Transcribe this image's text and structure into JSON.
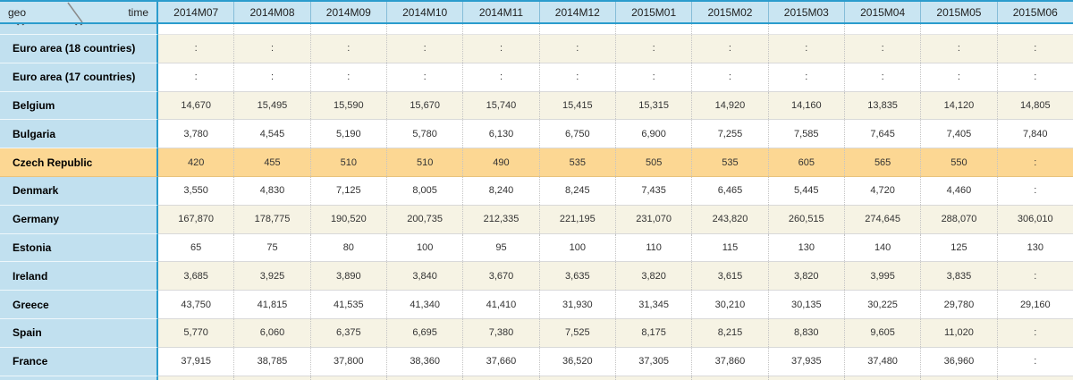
{
  "header": {
    "geo_label": "geo",
    "time_label": "time",
    "columns": [
      "2014M07",
      "2014M08",
      "2014M09",
      "2014M10",
      "2014M11",
      "2014M12",
      "2015M01",
      "2015M02",
      "2015M03",
      "2015M04",
      "2015M05",
      "2015M06"
    ]
  },
  "missing_value_symbol": ":",
  "colors": {
    "accent_border_blue": "#2b9ccd",
    "header_bg_blue": "#c9e5f2",
    "row_label_bg_blue": "#c1e0ef",
    "stripe_cream": "#f6f3e4",
    "stripe_white": "#ffffff",
    "highlight_orange": "#fcd793"
  },
  "rows": [
    {
      "label": "Euro area (18 countries)",
      "shade": "cream",
      "highlight": false,
      "values": [
        ":",
        ":",
        ":",
        ":",
        ":",
        ":",
        ":",
        ":",
        ":",
        ":",
        ":",
        ":"
      ]
    },
    {
      "label": "Euro area (17 countries)",
      "shade": "white",
      "highlight": false,
      "values": [
        ":",
        ":",
        ":",
        ":",
        ":",
        ":",
        ":",
        ":",
        ":",
        ":",
        ":",
        ":"
      ]
    },
    {
      "label": "Belgium",
      "shade": "cream",
      "highlight": false,
      "values": [
        "14,670",
        "15,495",
        "15,590",
        "15,670",
        "15,740",
        "15,415",
        "15,315",
        "14,920",
        "14,160",
        "13,835",
        "14,120",
        "14,805"
      ]
    },
    {
      "label": "Bulgaria",
      "shade": "white",
      "highlight": false,
      "values": [
        "3,780",
        "4,545",
        "5,190",
        "5,780",
        "6,130",
        "6,750",
        "6,900",
        "7,255",
        "7,585",
        "7,645",
        "7,405",
        "7,840"
      ]
    },
    {
      "label": "Czech Republic",
      "shade": "cream",
      "highlight": true,
      "values": [
        "420",
        "455",
        "510",
        "510",
        "490",
        "535",
        "505",
        "535",
        "605",
        "565",
        "550",
        ":"
      ]
    },
    {
      "label": "Denmark",
      "shade": "white",
      "highlight": false,
      "values": [
        "3,550",
        "4,830",
        "7,125",
        "8,005",
        "8,240",
        "8,245",
        "7,435",
        "6,465",
        "5,445",
        "4,720",
        "4,460",
        ":"
      ]
    },
    {
      "label": "Germany",
      "shade": "cream",
      "highlight": false,
      "values": [
        "167,870",
        "178,775",
        "190,520",
        "200,735",
        "212,335",
        "221,195",
        "231,070",
        "243,820",
        "260,515",
        "274,645",
        "288,070",
        "306,010"
      ]
    },
    {
      "label": "Estonia",
      "shade": "white",
      "highlight": false,
      "values": [
        "65",
        "75",
        "80",
        "100",
        "95",
        "100",
        "110",
        "115",
        "130",
        "140",
        "125",
        "130"
      ]
    },
    {
      "label": "Ireland",
      "shade": "cream",
      "highlight": false,
      "values": [
        "3,685",
        "3,925",
        "3,890",
        "3,840",
        "3,670",
        "3,635",
        "3,820",
        "3,615",
        "3,820",
        "3,995",
        "3,835",
        ":"
      ]
    },
    {
      "label": "Greece",
      "shade": "white",
      "highlight": false,
      "values": [
        "43,750",
        "41,815",
        "41,535",
        "41,340",
        "41,410",
        "31,930",
        "31,345",
        "30,210",
        "30,135",
        "30,225",
        "29,780",
        "29,160"
      ]
    },
    {
      "label": "Spain",
      "shade": "cream",
      "highlight": false,
      "values": [
        "5,770",
        "6,060",
        "6,375",
        "6,695",
        "7,380",
        "7,525",
        "8,175",
        "8,215",
        "8,830",
        "9,605",
        "11,020",
        ":"
      ]
    },
    {
      "label": "France",
      "shade": "white",
      "highlight": false,
      "values": [
        "37,915",
        "38,785",
        "37,800",
        "38,360",
        "37,660",
        "36,520",
        "37,305",
        "37,860",
        "37,935",
        "37,480",
        "36,960",
        ":"
      ]
    }
  ]
}
